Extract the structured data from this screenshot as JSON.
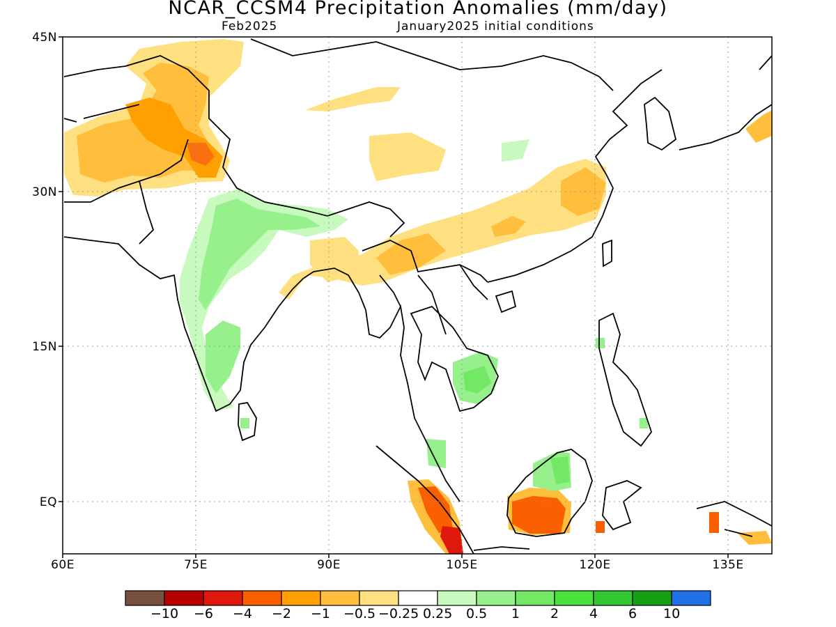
{
  "title": "NCAR_CCSM4 Precipitation Anomalies (mm/day)",
  "subtitle_left": "Feb2025",
  "subtitle_right": "January2025 initial conditions",
  "lat_labels": [
    "45N",
    "30N",
    "15N",
    "EQ"
  ],
  "lon_labels": [
    "60E",
    "75E",
    "90E",
    "105E",
    "120E",
    "135E"
  ],
  "colorbar": {
    "colors": [
      "#7a5040",
      "#b80000",
      "#e0180c",
      "#fa6000",
      "#ffa000",
      "#ffbe3c",
      "#ffe080",
      "#ffffff",
      "#c8fac0",
      "#96f08c",
      "#72e864",
      "#4ce03c",
      "#32c832",
      "#16a016",
      "#2070e8"
    ],
    "labels": [
      "−10",
      "−6",
      "−4",
      "−2",
      "−1",
      "−0.5",
      "−0.25",
      "0.25",
      "0.5",
      "1",
      "2",
      "4",
      "6",
      "10"
    ]
  },
  "map_extent": {
    "lon": [
      60,
      140
    ],
    "lat": [
      -5,
      45
    ]
  },
  "anomaly_regions": [
    {
      "name": "afghanistan-pakistan-dry",
      "level": "-0.5"
    },
    {
      "name": "karakoram-dry",
      "level": "-1"
    },
    {
      "name": "kashmir-dry",
      "level": "-2"
    },
    {
      "name": "south-china-dry-band",
      "level": "-0.5"
    },
    {
      "name": "sumatra-dry",
      "level": "-2"
    },
    {
      "name": "sumatra-south-dry",
      "level": "-4"
    },
    {
      "name": "borneo-dry",
      "level": "-2"
    },
    {
      "name": "india-wet",
      "level": "0.25"
    },
    {
      "name": "indochina-wet",
      "level": "0.5"
    },
    {
      "name": "borneo-north-wet",
      "level": "1"
    }
  ]
}
